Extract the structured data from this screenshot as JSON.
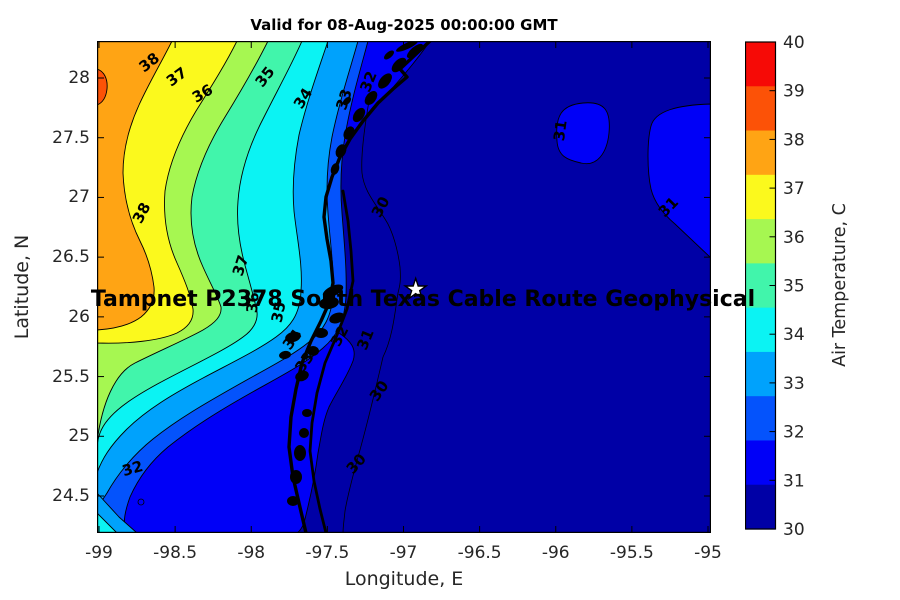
{
  "figure": {
    "title": "Valid for 08-Aug-2025 00:00:00 GMT",
    "overlay_label": "Tampnet P2378 South Texas Cable Route Geophysical",
    "background": "#FFFFFF"
  },
  "axes": {
    "xlabel": "Longitude, E",
    "ylabel": "Latitude, N",
    "x_ticks": [
      -99,
      -98.5,
      -98,
      -97.5,
      -97,
      -96.5,
      -96,
      -95.5,
      -95
    ],
    "y_ticks": [
      28,
      27.5,
      27,
      26.5,
      26,
      25.5,
      25,
      24.5
    ],
    "x_range": [
      -99.03,
      -94.99
    ],
    "y_range": [
      24.19,
      28.31
    ],
    "tick_color": "#262626",
    "frame_color": "#000000"
  },
  "colorbar": {
    "label": "Air Temperature, C",
    "ticks": [
      40,
      39,
      38,
      37,
      36,
      35,
      34,
      33,
      32,
      31,
      30
    ],
    "band_colors_bottom_to_top": [
      "#0000A6",
      "#0000F7",
      "#0453FC",
      "#00A2FC",
      "#0BF3F3",
      "#41F5AB",
      "#A6F751",
      "#FBF91D",
      "#FFA414",
      "#FC5207",
      "#F60A06"
    ]
  },
  "chart_data": {
    "type": "heatmap",
    "subtype": "filled-contour-map",
    "title": "Valid for 08-Aug-2025 00:00:00 GMT",
    "xlabel": "Longitude, E",
    "ylabel": "Latitude, N",
    "colorbar_label": "Air Temperature, C",
    "value_range": [
      30,
      40
    ],
    "contour_levels": [
      30,
      31,
      32,
      33,
      34,
      35,
      36,
      37,
      38,
      39
    ],
    "colormap": "jet",
    "level_fill_colors": {
      "30": "#0000A6",
      "31": "#0000F7",
      "32": "#0453FC",
      "33": "#00A2FC",
      "34": "#0BF3F3",
      "35": "#41F5AB",
      "36": "#A6F751",
      "37": "#FBF91D",
      "38": "#FFA414",
      "39": "#FC5207"
    },
    "description": "Air temperature filled contours: hot (37-39 C) inland to the northwest, cooling eastward to 30-31 C over the Gulf of Mexico east of the Texas coastline; closed 31 C contours in the northeast; thin 30 and 31 C lines offshore.",
    "star_marker": {
      "lon": -96.92,
      "lat": 26.23
    },
    "contour_labels": [
      {
        "value": 38,
        "lon": -98.67,
        "lat": 28.13,
        "rot": -38
      },
      {
        "value": 37,
        "lon": -98.49,
        "lat": 28.01,
        "rot": -36
      },
      {
        "value": 36,
        "lon": -98.32,
        "lat": 27.87,
        "rot": -30
      },
      {
        "value": 35,
        "lon": -97.91,
        "lat": 28.01,
        "rot": -52
      },
      {
        "value": 34,
        "lon": -97.66,
        "lat": 27.83,
        "rot": -58
      },
      {
        "value": 33,
        "lon": -97.39,
        "lat": 27.82,
        "rot": -72
      },
      {
        "value": 32,
        "lon": -97.23,
        "lat": 27.97,
        "rot": -68
      },
      {
        "value": 38,
        "lon": -98.72,
        "lat": 26.87,
        "rot": -62
      },
      {
        "value": 37,
        "lon": -98.07,
        "lat": 26.43,
        "rot": -72
      },
      {
        "value": 36,
        "lon": -97.99,
        "lat": 26.12,
        "rot": -85
      },
      {
        "value": 35,
        "lon": -97.82,
        "lat": 26.04,
        "rot": -78
      },
      {
        "value": 34,
        "lon": -97.73,
        "lat": 25.81,
        "rot": -52
      },
      {
        "value": 33,
        "lon": -97.65,
        "lat": 25.62,
        "rot": -55
      },
      {
        "value": 32,
        "lon": -97.42,
        "lat": 25.84,
        "rot": -62
      },
      {
        "value": 31,
        "lon": -97.25,
        "lat": 25.81,
        "rot": -68
      },
      {
        "value": 30,
        "lon": -97.15,
        "lat": 26.92,
        "rot": -62
      },
      {
        "value": 30,
        "lon": -97.16,
        "lat": 25.38,
        "rot": -55
      },
      {
        "value": 30,
        "lon": -97.31,
        "lat": 24.77,
        "rot": -48
      },
      {
        "value": 32,
        "lon": -98.78,
        "lat": 24.73,
        "rot": -16
      },
      {
        "value": 31,
        "lon": -95.97,
        "lat": 27.56,
        "rot": -82
      },
      {
        "value": 31,
        "lon": -95.26,
        "lat": 26.92,
        "rot": -46
      }
    ]
  }
}
